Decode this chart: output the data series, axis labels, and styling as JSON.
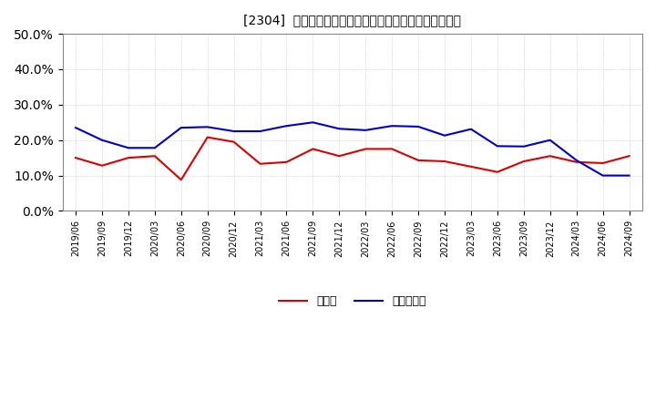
{
  "title": "[2304]  現預金、有利子負債の総資産に対する比率の推移",
  "x_labels": [
    "2019/06",
    "2019/09",
    "2019/12",
    "2020/03",
    "2020/06",
    "2020/09",
    "2020/12",
    "2021/03",
    "2021/06",
    "2021/09",
    "2021/12",
    "2022/03",
    "2022/06",
    "2022/09",
    "2022/12",
    "2023/03",
    "2023/06",
    "2023/09",
    "2023/12",
    "2024/03",
    "2024/06",
    "2024/09"
  ],
  "cash": [
    0.15,
    0.128,
    0.15,
    0.155,
    0.088,
    0.208,
    0.195,
    0.133,
    0.138,
    0.175,
    0.155,
    0.175,
    0.175,
    0.143,
    0.14,
    0.125,
    0.11,
    0.14,
    0.155,
    0.138,
    0.135,
    0.155
  ],
  "debt": [
    0.235,
    0.2,
    0.178,
    0.178,
    0.235,
    0.237,
    0.225,
    0.225,
    0.24,
    0.25,
    0.232,
    0.228,
    0.24,
    0.238,
    0.213,
    0.231,
    0.183,
    0.182,
    0.2,
    0.143,
    0.1,
    0.1
  ],
  "cash_color": "#dd0000",
  "debt_color": "#0000cc",
  "background_color": "#ffffff",
  "grid_color": "#aaaaaa",
  "legend_cash": "現預金",
  "legend_debt": "有利子負債",
  "ylim": [
    0.0,
    0.5
  ],
  "yticks": [
    0.0,
    0.1,
    0.2,
    0.3,
    0.4,
    0.5
  ]
}
